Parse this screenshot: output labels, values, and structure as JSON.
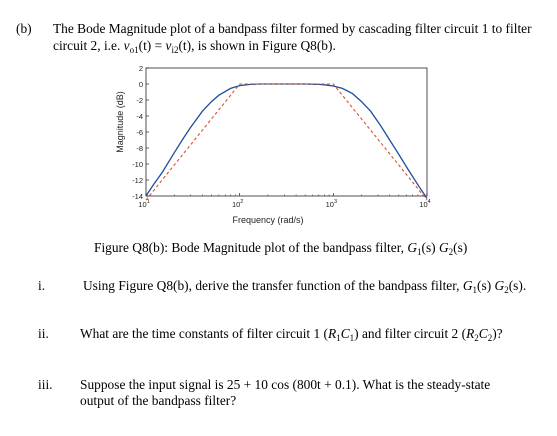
{
  "part": {
    "label": "(b)",
    "line1": "The Bode Magnitude plot of a bandpass filter formed by cascading filter circuit 1 to filter",
    "line2_pre": "circuit 2, i.e. ",
    "eq_lhs": "v",
    "eq_lhs_sub": "o1",
    "eq_arg": "(t)",
    "eq_eq": " = ",
    "eq_rhs": "v",
    "eq_rhs_sub": "i2",
    "eq_arg2": "(t)",
    "line2_post": ", is shown in Figure Q8(b)."
  },
  "chart_data": {
    "type": "line",
    "xscale": "log",
    "xlim": [
      10,
      10000
    ],
    "ylim": [
      -14,
      2
    ],
    "xlabel": "Frequency (rad/s)",
    "ylabel": "Magnitude (dB)",
    "yticks": [
      "2",
      "0",
      "-2",
      "-4",
      "-6",
      "-8",
      "-10",
      "-12",
      "-14"
    ],
    "xticks": [
      {
        "base": "10",
        "exp": "1",
        "value": 10
      },
      {
        "base": "10",
        "exp": "2",
        "value": 100
      },
      {
        "base": "10",
        "exp": "3",
        "value": 1000
      },
      {
        "base": "10",
        "exp": "4",
        "value": 10000
      }
    ],
    "series": [
      {
        "style": "solid",
        "color": "#1f4e9c",
        "x": [
          10,
          12,
          15,
          20,
          25,
          30,
          40,
          50,
          60,
          80,
          100,
          130,
          160,
          200,
          300,
          400,
          500,
          600,
          700,
          800,
          1000,
          1250,
          1600,
          2000,
          2500,
          3200,
          4000,
          5000,
          6300,
          8000,
          10000
        ],
        "y": [
          -14.0,
          -12.6,
          -11.0,
          -8.6,
          -6.8,
          -5.4,
          -3.4,
          -2.2,
          -1.4,
          -0.55,
          -0.2,
          -0.05,
          0,
          0,
          0,
          0,
          0,
          -0.02,
          -0.05,
          -0.1,
          -0.25,
          -0.55,
          -1.2,
          -2.2,
          -3.4,
          -5.2,
          -7.0,
          -8.8,
          -10.7,
          -12.6,
          -14.3
        ]
      },
      {
        "style": "dashed",
        "color": "#d9502a",
        "x": [
          10,
          100,
          1000,
          10000
        ],
        "y": [
          -14.5,
          0,
          0,
          -14.5
        ]
      }
    ]
  },
  "figure": {
    "caption_pre": "Figure Q8(b): Bode Magnitude plot of the bandpass filter, ",
    "g1": "G",
    "g1_sub": "1",
    "s1": "(s) ",
    "g2": "G",
    "g2_sub": "2",
    "s2": "(s)"
  },
  "q1": {
    "num": "i.",
    "pre": "Using Figure Q8(b), derive the transfer function of the bandpass filter, ",
    "g1": "G",
    "g1_sub": "1",
    "s1": "(s) ",
    "g2": "G",
    "g2_sub": "2",
    "s2": "(s)."
  },
  "q2": {
    "num": "ii.",
    "pre": "What are the time constants of filter circuit 1 (",
    "r1": "R",
    "r1_sub": "1",
    "c1": "C",
    "c1_sub": "1",
    "mid": ") and filter circuit 2 (",
    "r2": "R",
    "r2_sub": "2",
    "c2": "C",
    "c2_sub": "2",
    "post": ")?"
  },
  "q3": {
    "num": "iii.",
    "line1": "Suppose the input signal is 25 + 10 cos (800t + 0.1). What is the steady-state",
    "line2": "output of the bandpass filter?"
  }
}
